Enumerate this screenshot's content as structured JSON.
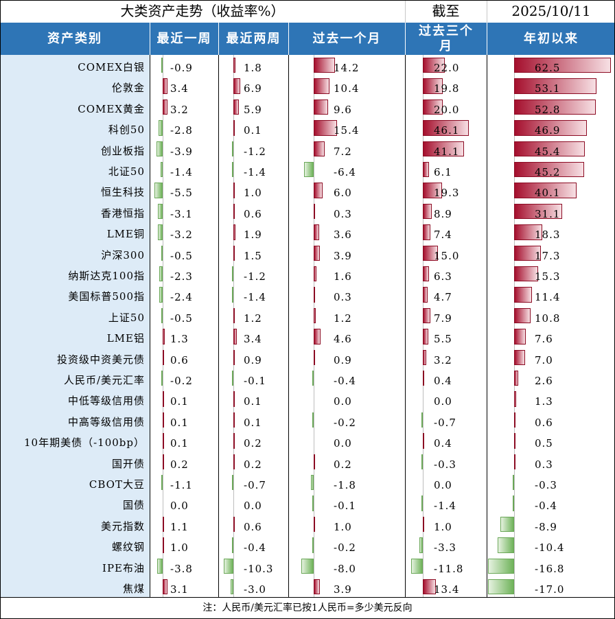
{
  "title": "大类资产走势（收益率%）",
  "as_of_label": "截至",
  "as_of_date": "2025/10/11",
  "columns": [
    "资产类别",
    "最近一周",
    "最近两周",
    "过去一个月",
    "过去三个月",
    "年初以来"
  ],
  "note": "注：人民币/美元汇率已按1人民币=多少美元反向",
  "colors": {
    "header": "#2e75b6",
    "name_bg": "#ddebf7",
    "positive": "#a50f2d",
    "negative": "#6fb35a"
  },
  "rows": [
    {
      "name": "COMEX白银",
      "values": [
        -0.9,
        1.8,
        14.2,
        22.0,
        62.5
      ]
    },
    {
      "name": "伦敦金",
      "values": [
        3.4,
        6.9,
        10.4,
        19.8,
        53.1
      ]
    },
    {
      "name": "COMEX黄金",
      "values": [
        3.2,
        5.9,
        9.6,
        20.0,
        52.8
      ]
    },
    {
      "name": "科创50",
      "values": [
        -2.8,
        0.1,
        15.4,
        46.1,
        46.9
      ]
    },
    {
      "name": "创业板指",
      "values": [
        -3.9,
        -1.2,
        7.2,
        41.1,
        45.4
      ]
    },
    {
      "name": "北证50",
      "values": [
        -1.4,
        -1.4,
        -6.4,
        6.1,
        45.2
      ]
    },
    {
      "name": "恒生科技",
      "values": [
        -5.5,
        1.0,
        6.0,
        19.3,
        40.1
      ]
    },
    {
      "name": "香港恒指",
      "values": [
        -3.1,
        0.6,
        0.3,
        8.9,
        31.1
      ]
    },
    {
      "name": "LME铜",
      "values": [
        -3.2,
        1.9,
        3.6,
        7.4,
        18.3
      ]
    },
    {
      "name": "沪深300",
      "values": [
        -0.5,
        1.5,
        3.9,
        15.0,
        17.3
      ]
    },
    {
      "name": "纳斯达克100指",
      "values": [
        -2.3,
        -1.2,
        1.6,
        6.3,
        15.3
      ]
    },
    {
      "name": "美国标普500指",
      "values": [
        -2.4,
        -1.4,
        0.3,
        4.7,
        11.4
      ]
    },
    {
      "name": "上证50",
      "values": [
        -0.5,
        1.2,
        1.2,
        7.9,
        10.8
      ]
    },
    {
      "name": "LME铝",
      "values": [
        1.3,
        3.4,
        4.6,
        5.5,
        7.6
      ]
    },
    {
      "name": "投资级中资美元债",
      "values": [
        0.6,
        0.9,
        0.9,
        3.2,
        7.0
      ]
    },
    {
      "name": "人民币/美元汇率",
      "values": [
        -0.2,
        -0.1,
        -0.4,
        0.4,
        2.6
      ]
    },
    {
      "name": "中低等级信用债",
      "values": [
        0.1,
        0.1,
        0.0,
        0.0,
        1.3
      ]
    },
    {
      "name": "中高等级信用债",
      "values": [
        0.1,
        0.1,
        -0.2,
        -0.7,
        0.6
      ]
    },
    {
      "name": "10年期美债（-100bp）",
      "values": [
        0.1,
        0.2,
        0.0,
        0.4,
        0.5
      ]
    },
    {
      "name": "国开债",
      "values": [
        0.2,
        0.2,
        0.2,
        -0.3,
        0.3
      ]
    },
    {
      "name": "CBOT大豆",
      "values": [
        -1.1,
        -0.7,
        -1.8,
        0.0,
        -0.3
      ]
    },
    {
      "name": "国债",
      "values": [
        0.0,
        0.0,
        -0.1,
        -1.4,
        -0.4
      ]
    },
    {
      "name": "美元指数",
      "values": [
        1.1,
        0.6,
        1.0,
        1.0,
        -8.9
      ]
    },
    {
      "name": "螺纹钢",
      "values": [
        1.0,
        -0.4,
        -0.2,
        -3.3,
        -10.4
      ]
    },
    {
      "name": "IPE布油",
      "values": [
        -3.8,
        -10.3,
        -8.0,
        -11.8,
        -16.8
      ]
    },
    {
      "name": "焦煤",
      "values": [
        3.1,
        -3.0,
        3.9,
        13.4,
        -17.0
      ]
    }
  ],
  "chart_data": {
    "type": "table",
    "title": "大类资产走势（收益率%）",
    "columns": [
      "最近一周",
      "最近两周",
      "过去一个月",
      "过去三个月",
      "年初以来"
    ],
    "categories": [
      "COMEX白银",
      "伦敦金",
      "COMEX黄金",
      "科创50",
      "创业板指",
      "北证50",
      "恒生科技",
      "香港恒指",
      "LME铜",
      "沪深300",
      "纳斯达克100指",
      "美国标普500指",
      "上证50",
      "LME铝",
      "投资级中资美元债",
      "人民币/美元汇率",
      "中低等级信用债",
      "中高等级信用债",
      "10年期美债（-100bp）",
      "国开债",
      "CBOT大豆",
      "国债",
      "美元指数",
      "螺纹钢",
      "IPE布油",
      "焦煤"
    ],
    "series": [
      {
        "name": "最近一周",
        "values": [
          -0.9,
          3.4,
          3.2,
          -2.8,
          -3.9,
          -1.4,
          -5.5,
          -3.1,
          -3.2,
          -0.5,
          -2.3,
          -2.4,
          -0.5,
          1.3,
          0.6,
          -0.2,
          0.1,
          0.1,
          0.1,
          0.2,
          -1.1,
          0.0,
          1.1,
          1.0,
          -3.8,
          3.1
        ]
      },
      {
        "name": "最近两周",
        "values": [
          1.8,
          6.9,
          5.9,
          0.1,
          -1.2,
          -1.4,
          1.0,
          0.6,
          1.9,
          1.5,
          -1.2,
          -1.4,
          1.2,
          3.4,
          0.9,
          -0.1,
          0.1,
          0.1,
          0.2,
          0.2,
          -0.7,
          0.0,
          0.6,
          -0.4,
          -10.3,
          -3.0
        ]
      },
      {
        "name": "过去一个月",
        "values": [
          14.2,
          10.4,
          9.6,
          15.4,
          7.2,
          -6.4,
          6.0,
          0.3,
          3.6,
          3.9,
          1.6,
          0.3,
          1.2,
          4.6,
          0.9,
          -0.4,
          0.0,
          -0.2,
          0.0,
          0.2,
          -1.8,
          -0.1,
          1.0,
          -0.2,
          -8.0,
          3.9
        ]
      },
      {
        "name": "过去三个月",
        "values": [
          22.0,
          19.8,
          20.0,
          46.1,
          41.1,
          6.1,
          19.3,
          8.9,
          7.4,
          15.0,
          6.3,
          4.7,
          7.9,
          5.5,
          3.2,
          0.4,
          0.0,
          -0.7,
          0.4,
          -0.3,
          0.0,
          -1.4,
          1.0,
          -3.3,
          -11.8,
          13.4
        ]
      },
      {
        "name": "年初以来",
        "values": [
          62.5,
          53.1,
          52.8,
          46.9,
          45.4,
          45.2,
          40.1,
          31.1,
          18.3,
          17.3,
          15.3,
          11.4,
          10.8,
          7.6,
          7.0,
          2.6,
          1.3,
          0.6,
          0.5,
          0.3,
          -0.3,
          -0.4,
          -8.9,
          -10.4,
          -16.8,
          -17.0
        ]
      }
    ]
  }
}
